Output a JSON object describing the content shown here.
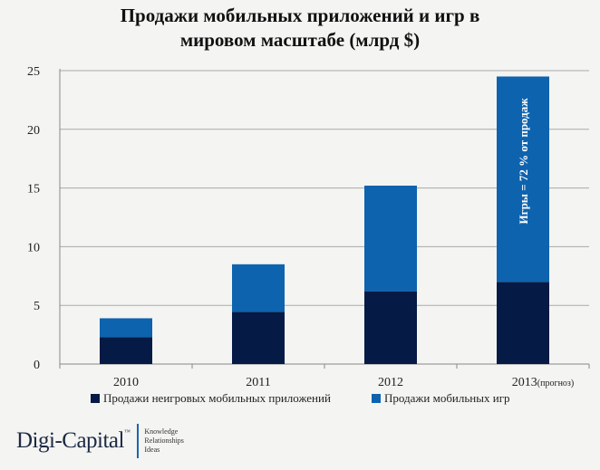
{
  "chart_data": {
    "type": "bar",
    "stacked": true,
    "title": "Продажи мобильных приложений и игр в мировом масштабе (млрд $)",
    "title_lines": [
      "Продажи мобильных приложений и игр в",
      "мировом масштабе (млрд $)"
    ],
    "categories": [
      "2010",
      "2011",
      "2012",
      "2013"
    ],
    "category_notes": [
      "",
      "",
      "",
      "(прогноз)"
    ],
    "series": [
      {
        "name": "Продажи неигровых мобильных приложений",
        "color": "#051a45",
        "values": [
          2.3,
          4.45,
          6.2,
          7.0
        ]
      },
      {
        "name": "Продажи мобильных игр",
        "color": "#0e63ae",
        "values": [
          1.6,
          4.05,
          9.0,
          17.5
        ]
      }
    ],
    "annotation": "Игры = 72 % от продаж",
    "ylim": [
      0,
      25
    ],
    "yticks": [
      0,
      5,
      10,
      15,
      20,
      25
    ],
    "grid": true,
    "legend": "bottom",
    "xlabel": "",
    "ylabel": ""
  },
  "logo": {
    "name": "Digi-Capital",
    "tm": "™",
    "tags": [
      "Knowledge",
      "Relationships",
      "Ideas"
    ]
  }
}
